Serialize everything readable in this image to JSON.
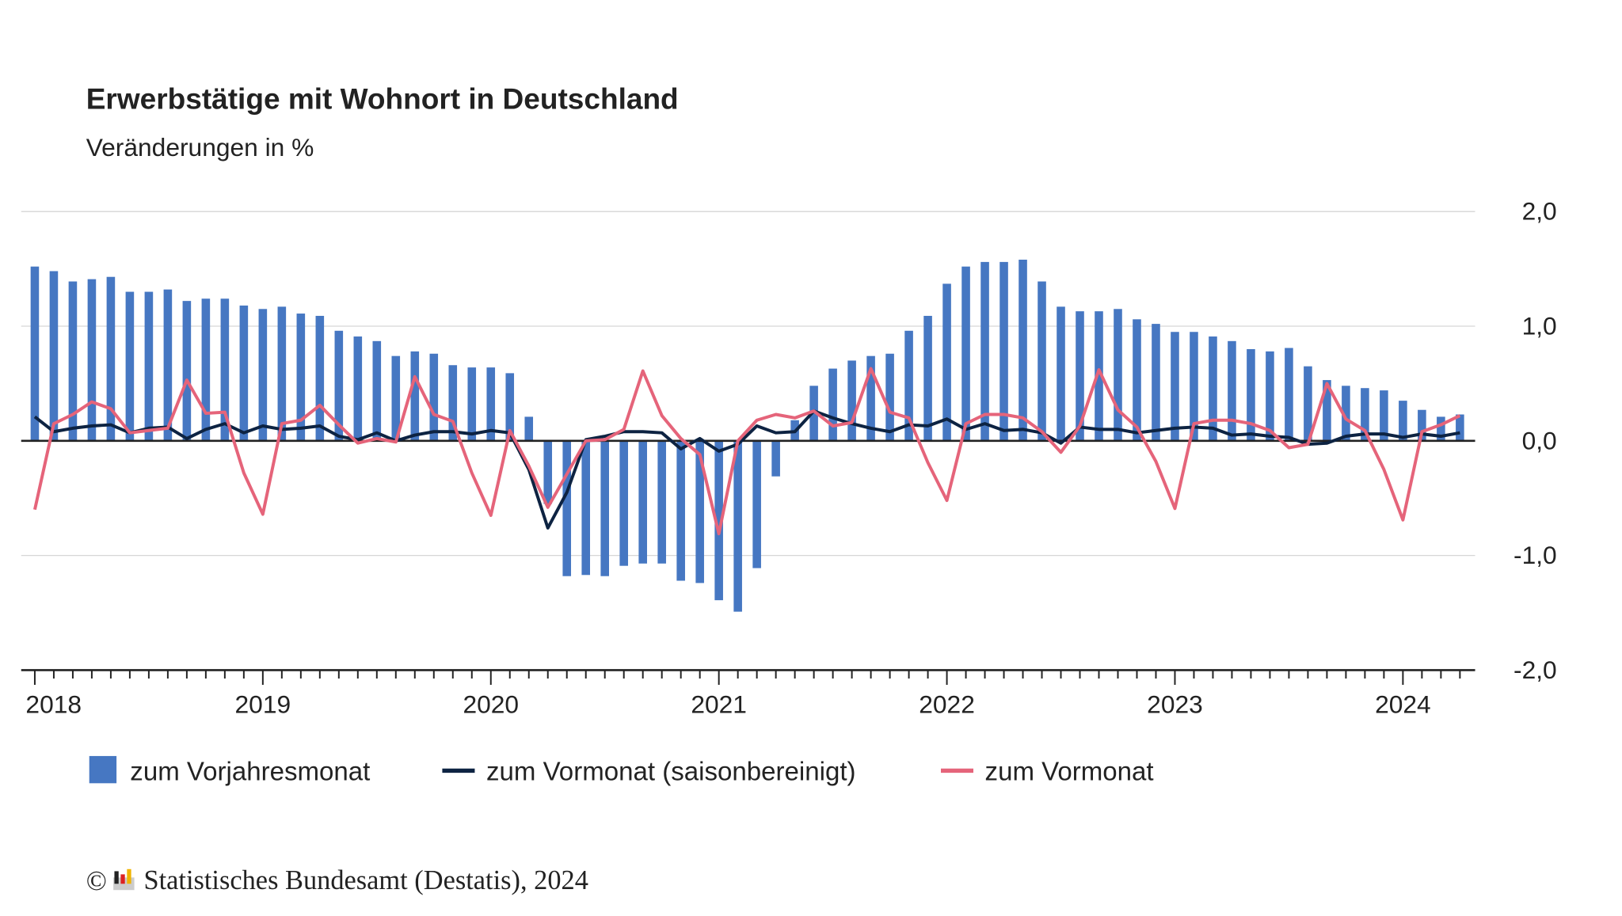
{
  "chart_data": {
    "type": "bar-line",
    "title": "Erwerbstätige mit Wohnort in Deutschland",
    "subtitle": "Veränderungen in %",
    "source": "Statistisches Bundesamt (Destatis), 2024",
    "copyright": "©",
    "categories": [
      "2018",
      null,
      null,
      null,
      null,
      null,
      null,
      null,
      null,
      null,
      null,
      null,
      "2019",
      null,
      null,
      null,
      null,
      null,
      null,
      null,
      null,
      null,
      null,
      null,
      "2020",
      null,
      null,
      null,
      null,
      null,
      null,
      null,
      null,
      null,
      null,
      null,
      "2021",
      null,
      null,
      null,
      null,
      null,
      null,
      null,
      null,
      null,
      null,
      null,
      "2022",
      null,
      null,
      null,
      null,
      null,
      null,
      null,
      null,
      null,
      null,
      null,
      "2023",
      null,
      null,
      null,
      null,
      null,
      null,
      null,
      null,
      null,
      null,
      null,
      "2024",
      null,
      null,
      null
    ],
    "series": [
      {
        "name": "zum Vorjahresmonat",
        "type": "bar",
        "color": "#4677c2",
        "values": [
          1.52,
          1.48,
          1.39,
          1.41,
          1.43,
          1.3,
          1.3,
          1.32,
          1.22,
          1.24,
          1.24,
          1.18,
          1.15,
          1.17,
          1.11,
          1.09,
          0.96,
          0.91,
          0.87,
          0.74,
          0.78,
          0.76,
          0.66,
          0.64,
          0.64,
          0.59,
          0.21,
          -0.55,
          -1.18,
          -1.17,
          -1.18,
          -1.09,
          -1.07,
          -1.07,
          -1.22,
          -1.24,
          -1.39,
          -1.49,
          -1.11,
          -0.31,
          0.18,
          0.48,
          0.63,
          0.7,
          0.74,
          0.76,
          0.96,
          1.09,
          1.37,
          1.52,
          1.56,
          1.56,
          1.58,
          1.39,
          1.17,
          1.13,
          1.13,
          1.15,
          1.06,
          1.02,
          0.95,
          0.95,
          0.91,
          0.87,
          0.8,
          0.78,
          0.81,
          0.65,
          0.53,
          0.48,
          0.46,
          0.44,
          0.35,
          0.27,
          0.21,
          0.23
        ]
      },
      {
        "name": "zum Vormonat (saisonbereinigt)",
        "type": "line",
        "color": "#0d2342",
        "values": [
          0.21,
          0.08,
          0.11,
          0.13,
          0.14,
          0.07,
          0.11,
          0.12,
          0.02,
          0.1,
          0.15,
          0.07,
          0.13,
          0.1,
          0.11,
          0.13,
          0.04,
          0.01,
          0.07,
          0.0,
          0.05,
          0.08,
          0.08,
          0.06,
          0.09,
          0.07,
          -0.25,
          -0.76,
          -0.45,
          0.01,
          0.04,
          0.08,
          0.08,
          0.07,
          -0.07,
          0.02,
          -0.09,
          -0.03,
          0.13,
          0.07,
          0.08,
          0.26,
          0.2,
          0.15,
          0.11,
          0.08,
          0.14,
          0.13,
          0.19,
          0.1,
          0.15,
          0.09,
          0.1,
          0.07,
          -0.02,
          0.12,
          0.1,
          0.1,
          0.07,
          0.09,
          0.11,
          0.12,
          0.11,
          0.05,
          0.06,
          0.04,
          0.03,
          -0.03,
          -0.02,
          0.04,
          0.06,
          0.06,
          0.03,
          0.06,
          0.04,
          0.07
        ]
      },
      {
        "name": "zum Vormonat",
        "type": "line",
        "color": "#e5647a",
        "values": [
          -0.6,
          0.15,
          0.23,
          0.34,
          0.28,
          0.07,
          0.09,
          0.11,
          0.53,
          0.24,
          0.25,
          -0.28,
          -0.64,
          0.15,
          0.18,
          0.31,
          0.14,
          -0.02,
          0.02,
          -0.01,
          0.56,
          0.23,
          0.17,
          -0.28,
          -0.65,
          0.09,
          -0.22,
          -0.58,
          -0.29,
          0.0,
          0.01,
          0.1,
          0.61,
          0.22,
          0.02,
          -0.12,
          -0.81,
          0.0,
          0.18,
          0.23,
          0.2,
          0.26,
          0.13,
          0.16,
          0.63,
          0.25,
          0.2,
          -0.19,
          -0.52,
          0.15,
          0.23,
          0.23,
          0.2,
          0.08,
          -0.1,
          0.13,
          0.62,
          0.27,
          0.12,
          -0.18,
          -0.59,
          0.15,
          0.18,
          0.18,
          0.15,
          0.09,
          -0.06,
          -0.03,
          0.5,
          0.19,
          0.09,
          -0.25,
          -0.69,
          0.08,
          0.14,
          0.22
        ]
      }
    ],
    "ylim": [
      -2,
      2
    ],
    "yticks": [
      {
        "value": -2,
        "label": "-2,0"
      },
      {
        "value": -1,
        "label": "-1,0"
      },
      {
        "value": 0,
        "label": "0,0"
      },
      {
        "value": 1,
        "label": "1,0"
      },
      {
        "value": 2,
        "label": "2,0"
      }
    ],
    "grid": true
  }
}
